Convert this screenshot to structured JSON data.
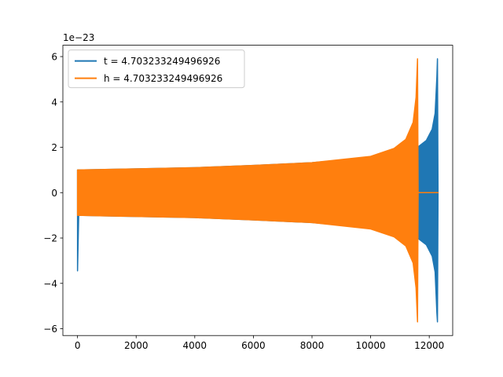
{
  "chart_data": {
    "type": "line",
    "title": "",
    "xlabel": "",
    "ylabel": "",
    "offset_text": "1e−23",
    "xlim": [
      -500,
      12800
    ],
    "ylim": [
      -6.3,
      6.5
    ],
    "xticks": [
      0,
      2000,
      4000,
      6000,
      8000,
      10000,
      12000
    ],
    "xtick_labels": [
      "0",
      "2000",
      "4000",
      "6000",
      "8000",
      "10000",
      "12000"
    ],
    "yticks": [
      -6,
      -4,
      -2,
      0,
      2,
      4,
      6
    ],
    "ytick_labels": [
      "−6",
      "−4",
      "−2",
      "0",
      "2",
      "4",
      "6"
    ],
    "grid": false,
    "legend_position": "upper-left",
    "series": [
      {
        "name": "t = 4.703233249496926",
        "color": "#1f77b4",
        "envelope": [
          {
            "x": 0,
            "upper": 1.0,
            "lower": -3.45
          },
          {
            "x": 40,
            "upper": 1.0,
            "lower": -1.0
          },
          {
            "x": 2000,
            "upper": 1.05,
            "lower": -1.05
          },
          {
            "x": 4000,
            "upper": 1.1,
            "lower": -1.1
          },
          {
            "x": 6000,
            "upper": 1.2,
            "lower": -1.2
          },
          {
            "x": 8000,
            "upper": 1.32,
            "lower": -1.32
          },
          {
            "x": 10000,
            "upper": 1.55,
            "lower": -1.55
          },
          {
            "x": 11000,
            "upper": 1.75,
            "lower": -1.75
          },
          {
            "x": 11600,
            "upper": 2.0,
            "lower": -2.0
          },
          {
            "x": 11900,
            "upper": 2.3,
            "lower": -2.3
          },
          {
            "x": 12100,
            "upper": 2.8,
            "lower": -2.8
          },
          {
            "x": 12200,
            "upper": 3.5,
            "lower": -3.5
          },
          {
            "x": 12260,
            "upper": 5.1,
            "lower": -5.3
          },
          {
            "x": 12280,
            "upper": 5.9,
            "lower": -5.7
          },
          {
            "x": 12300,
            "upper": 0.0,
            "lower": 0.0
          }
        ]
      },
      {
        "name": "h = 4.703233249496926",
        "color": "#ff7f0e",
        "envelope": [
          {
            "x": 0,
            "upper": 1.0,
            "lower": -1.0
          },
          {
            "x": 2000,
            "upper": 1.05,
            "lower": -1.05
          },
          {
            "x": 4000,
            "upper": 1.1,
            "lower": -1.1
          },
          {
            "x": 6000,
            "upper": 1.2,
            "lower": -1.2
          },
          {
            "x": 8000,
            "upper": 1.32,
            "lower": -1.32
          },
          {
            "x": 10000,
            "upper": 1.6,
            "lower": -1.6
          },
          {
            "x": 10800,
            "upper": 1.95,
            "lower": -1.95
          },
          {
            "x": 11200,
            "upper": 2.35,
            "lower": -2.35
          },
          {
            "x": 11450,
            "upper": 3.1,
            "lower": -3.1
          },
          {
            "x": 11550,
            "upper": 4.2,
            "lower": -4.2
          },
          {
            "x": 11600,
            "upper": 5.9,
            "lower": -5.7
          },
          {
            "x": 11620,
            "upper": 0.0,
            "lower": 0.0
          },
          {
            "x": 12300,
            "upper": 0.0,
            "lower": 0.0
          }
        ]
      }
    ]
  }
}
